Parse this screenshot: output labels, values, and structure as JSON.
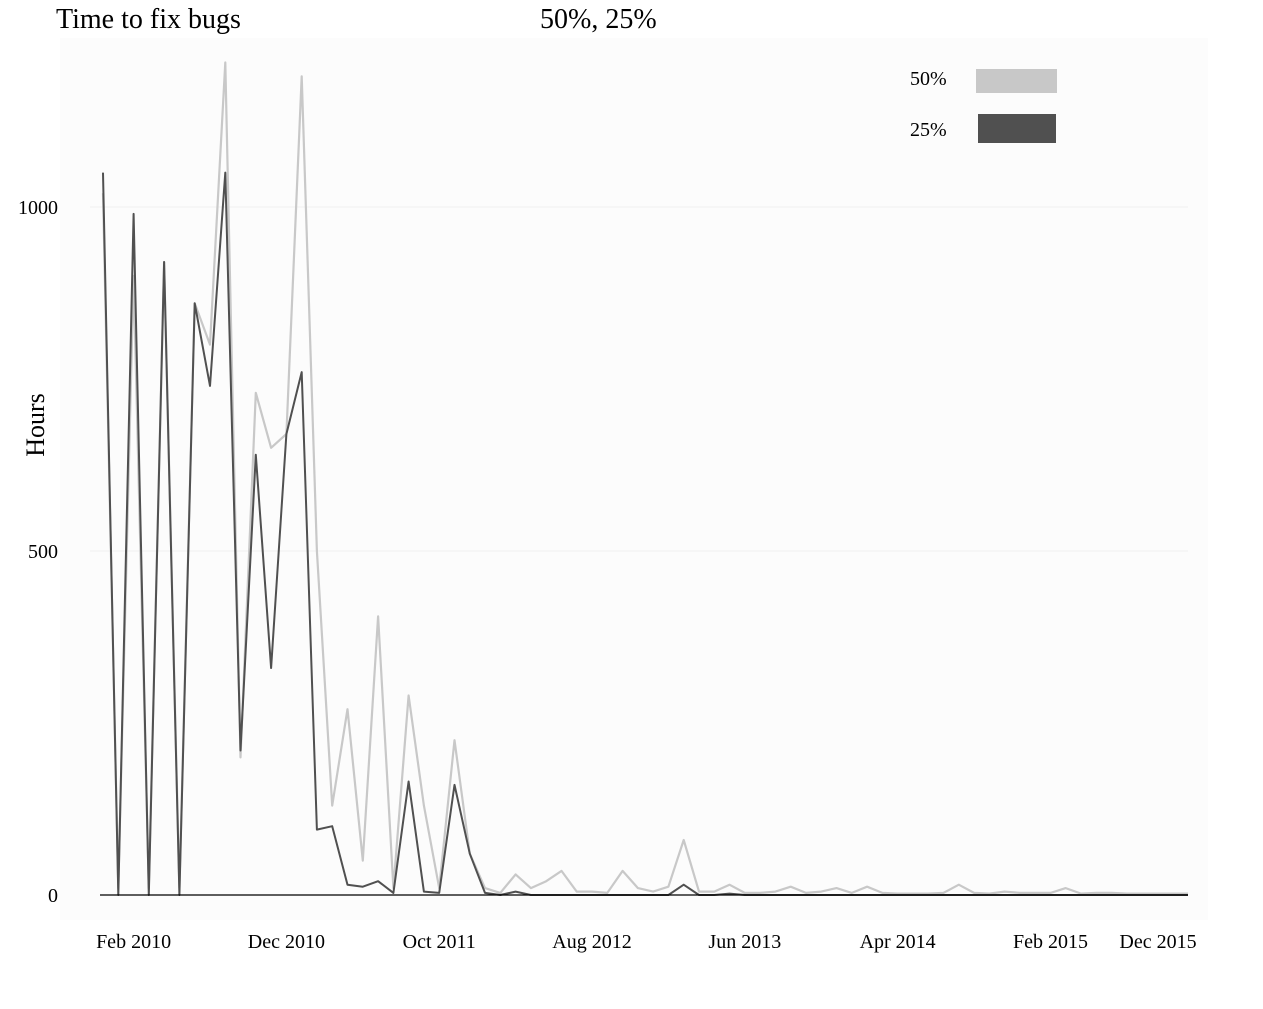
{
  "chart_data": {
    "type": "line",
    "title": "Time to fix bugs",
    "subtitle": "50%, 25%",
    "xlabel": "",
    "ylabel": "Hours",
    "ylim": [
      0,
      1200
    ],
    "yticks": [
      0,
      500,
      1000
    ],
    "xtick_labels": [
      "Feb 2010",
      "Dec 2010",
      "Oct 2011",
      "Aug 2012",
      "Jun 2013",
      "Apr 2014",
      "Feb 2015",
      "Dec 2015"
    ],
    "xtick_indices": [
      2,
      12,
      22,
      32,
      42,
      52,
      62,
      71
    ],
    "legend_position": "top-right",
    "grid": true,
    "series": [
      {
        "name": "50%",
        "color": "#c8c8c8",
        "values": [
          1020,
          10,
          900,
          10,
          920,
          10,
          860,
          800,
          1210,
          200,
          730,
          650,
          670,
          1190,
          500,
          130,
          270,
          50,
          405,
          10,
          290,
          130,
          10,
          225,
          60,
          10,
          3,
          30,
          10,
          20,
          35,
          5,
          5,
          3,
          35,
          10,
          5,
          12,
          80,
          5,
          5,
          15,
          3,
          3,
          5,
          12,
          3,
          5,
          10,
          3,
          12,
          3,
          2,
          2,
          2,
          3,
          15,
          3,
          2,
          5,
          3,
          3,
          3,
          10,
          2,
          3,
          3,
          2,
          2,
          2,
          2,
          2
        ]
      },
      {
        "name": "25%",
        "color": "#505050",
        "values": [
          1050,
          0,
          990,
          0,
          920,
          0,
          860,
          740,
          1050,
          210,
          640,
          330,
          670,
          760,
          95,
          100,
          15,
          12,
          20,
          3,
          165,
          5,
          3,
          160,
          60,
          3,
          0,
          5,
          0,
          0,
          0,
          0,
          0,
          0,
          0,
          0,
          0,
          0,
          15,
          0,
          0,
          2,
          0,
          0,
          0,
          0,
          0,
          0,
          0,
          0,
          0,
          0,
          0,
          0,
          0,
          0,
          0,
          0,
          0,
          0,
          0,
          0,
          0,
          0,
          0,
          0,
          0,
          0,
          0,
          0,
          0,
          0
        ]
      }
    ]
  }
}
